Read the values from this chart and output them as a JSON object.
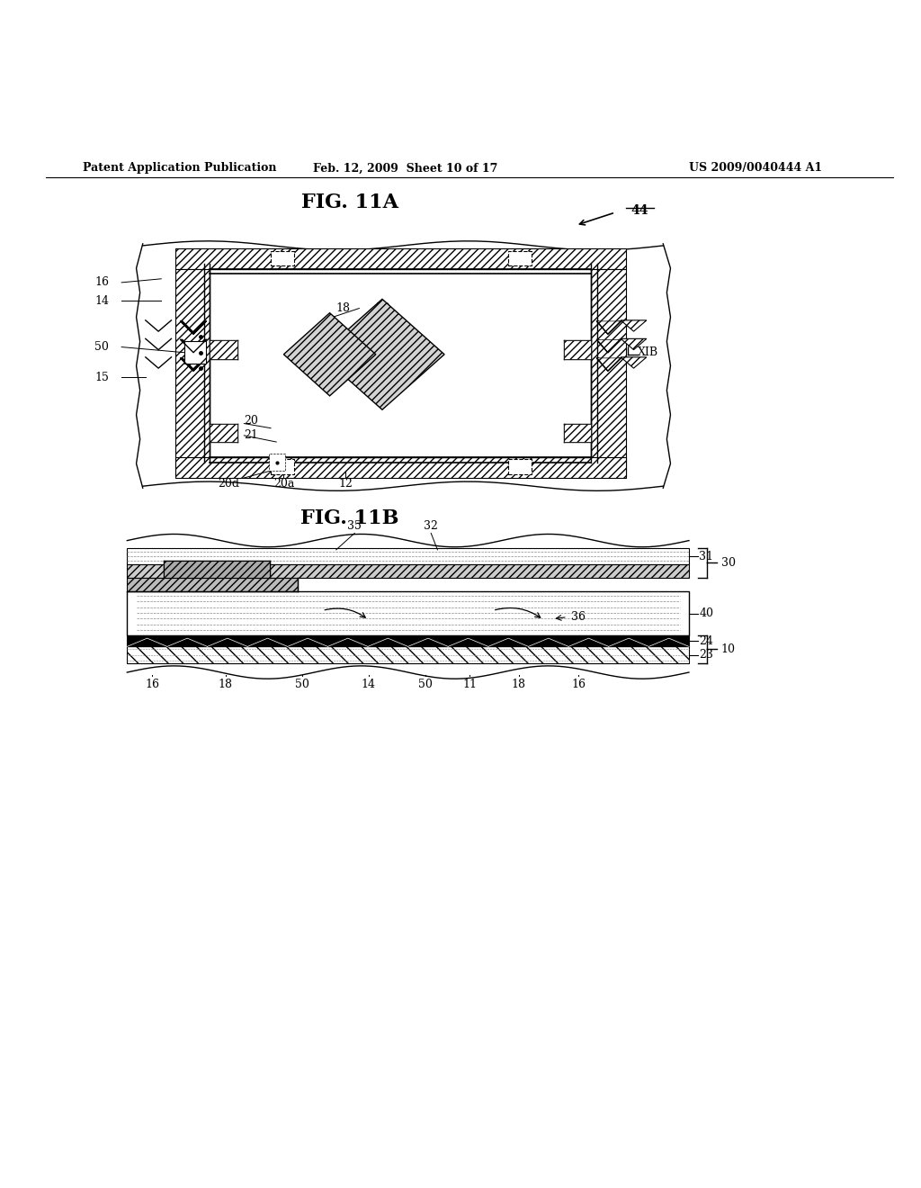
{
  "header_left": "Patent Application Publication",
  "header_mid": "Feb. 12, 2009  Sheet 10 of 17",
  "header_right": "US 2009/0040444 A1",
  "fig11a_title": "FIG. 11A",
  "fig11b_title": "FIG. 11B",
  "bg_color": "#ffffff",
  "line_color": "#000000"
}
